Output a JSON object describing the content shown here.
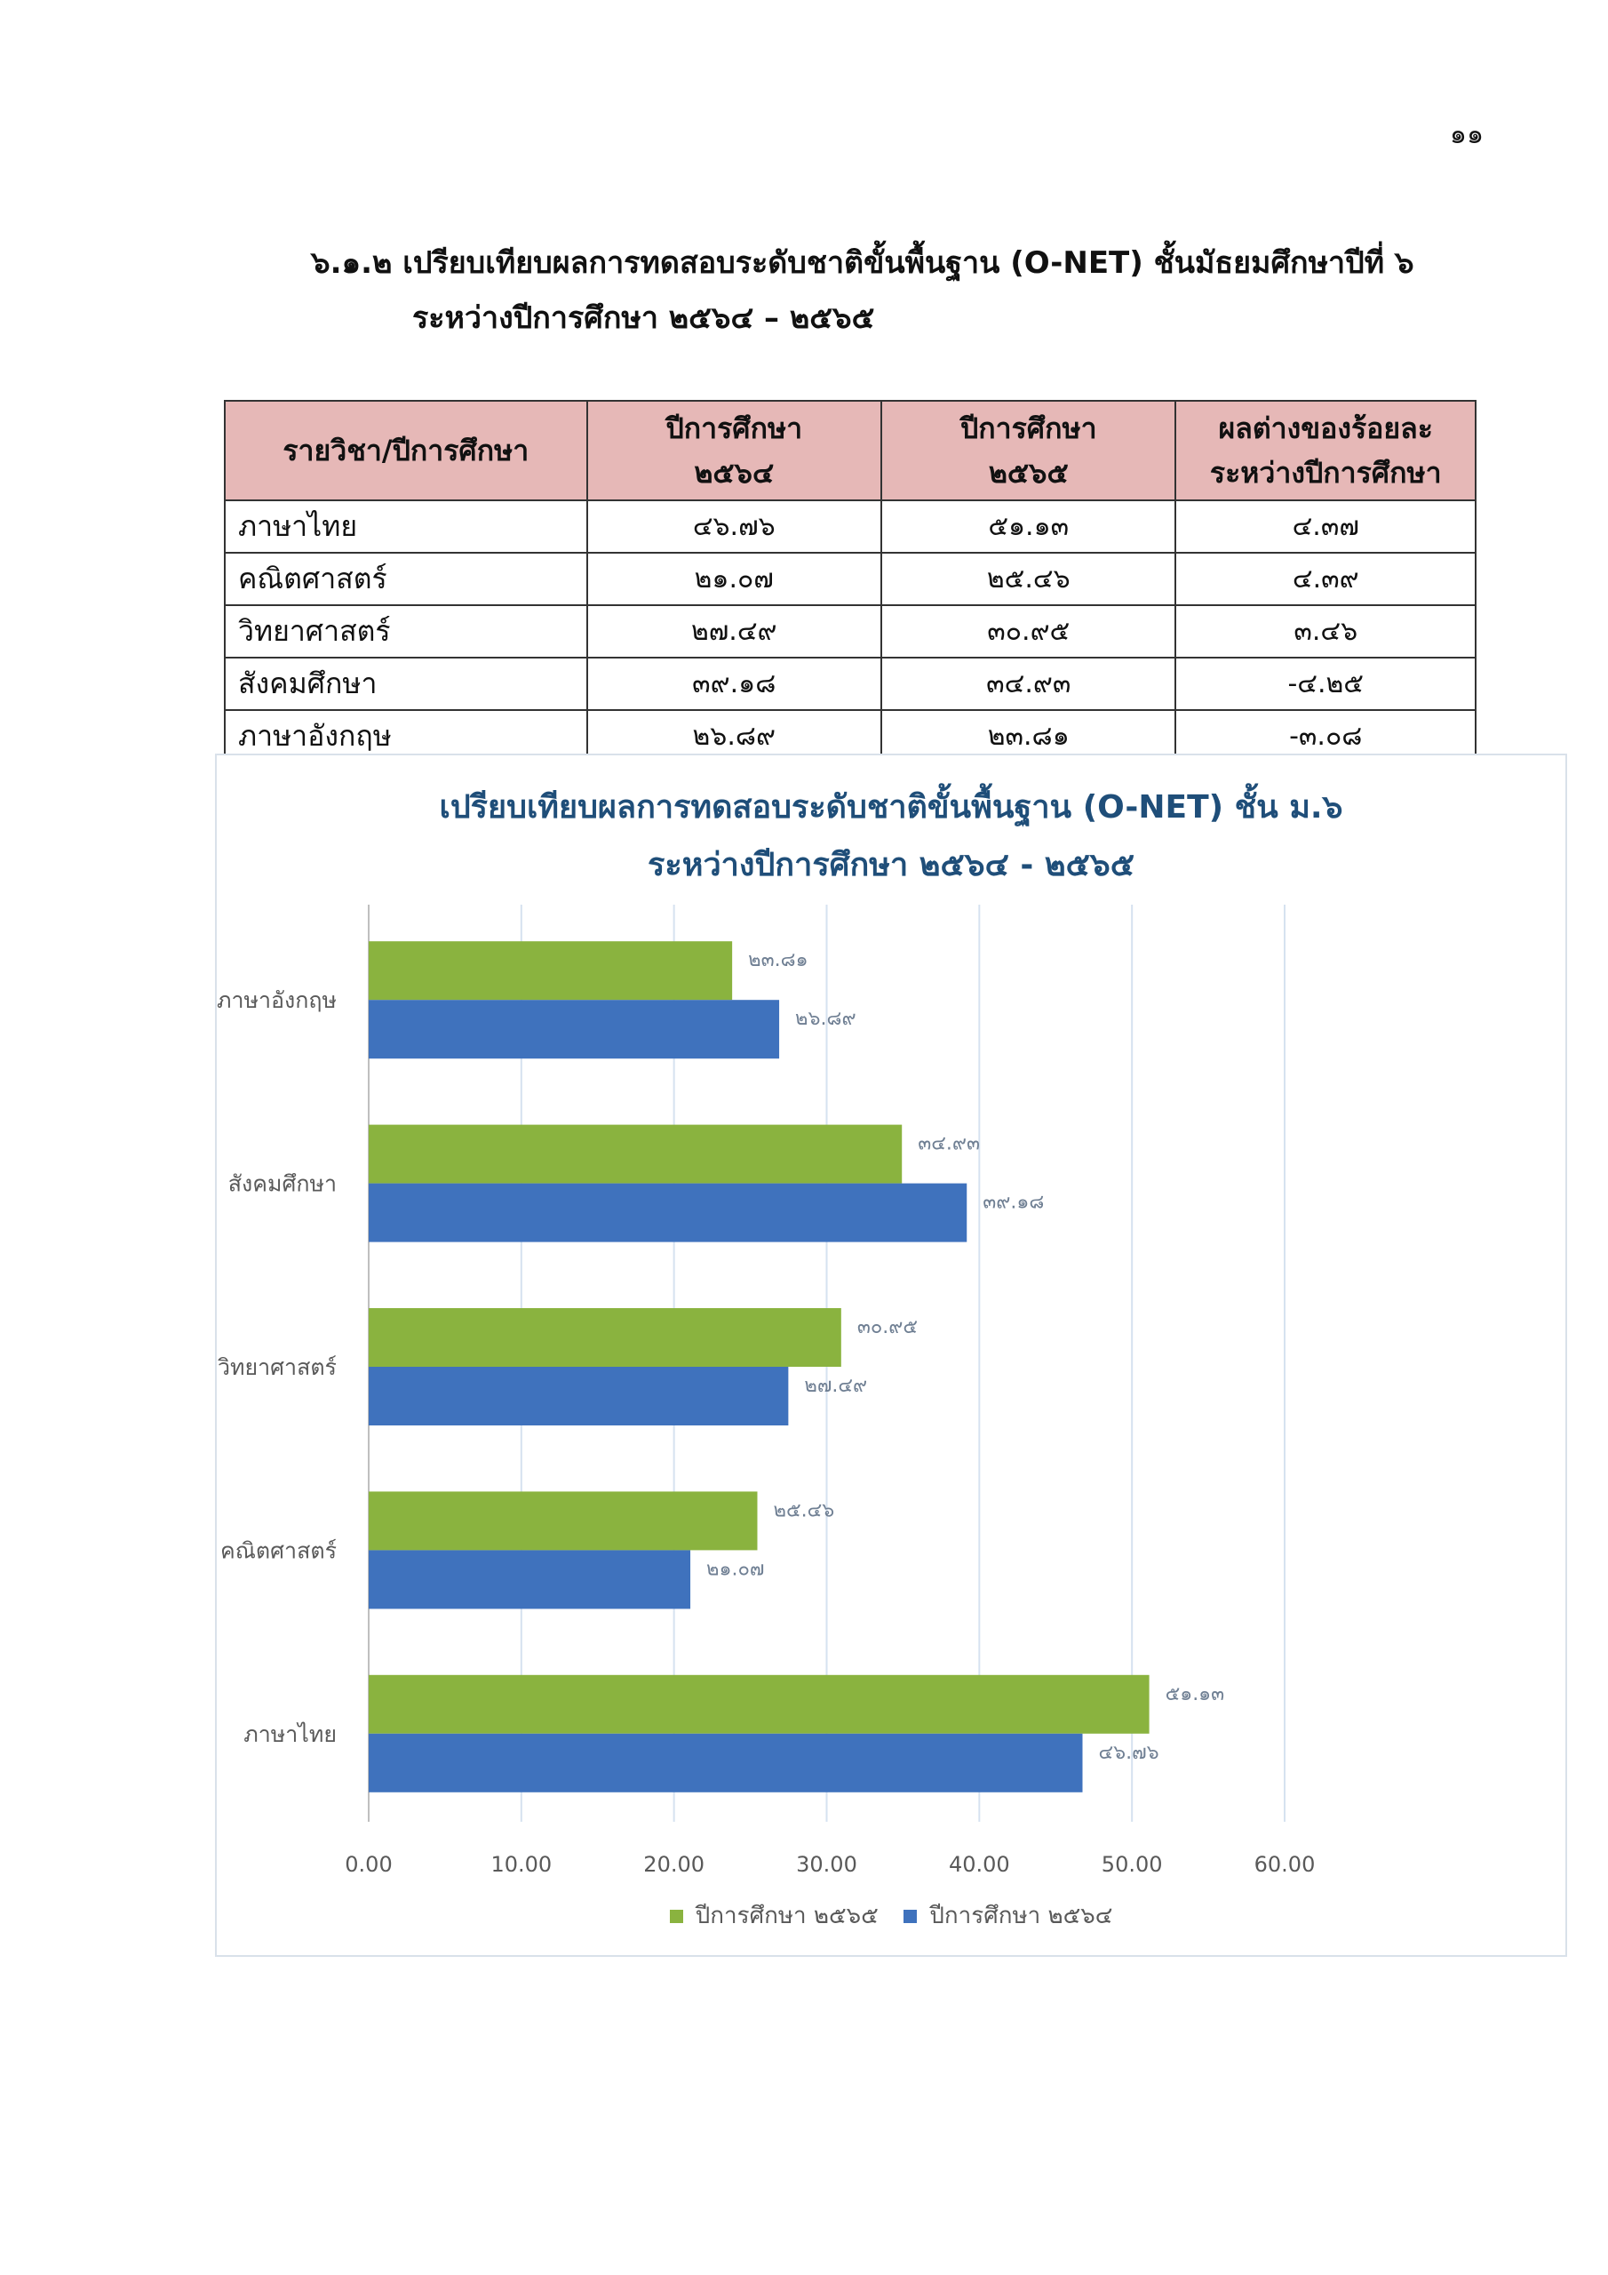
{
  "page_number": "๑๑",
  "heading": {
    "line1": "๖.๑.๒  เปรียบเทียบผลการทดสอบระดับชาติขั้นพื้นฐาน (O-NET) ชั้นมัธยมศึกษาปีที่ ๖",
    "line2": "ระหว่างปีการศึกษา ๒๕๖๔ – ๒๕๖๕"
  },
  "table": {
    "headers": [
      "รายวิชา/ปีการศึกษา",
      "ปีการศึกษา",
      "ปีการศึกษา",
      "ผลต่างของร้อยละ"
    ],
    "headers_line2": [
      "",
      "๒๕๖๔",
      "๒๕๖๕",
      "ระหว่างปีการศึกษา"
    ],
    "rows": [
      [
        "ภาษาไทย",
        "๔๖.๗๖",
        "๕๑.๑๓",
        "๔.๓๗"
      ],
      [
        "คณิตศาสตร์",
        "๒๑.๐๗",
        "๒๕.๔๖",
        "๔.๓๙"
      ],
      [
        "วิทยาศาสตร์",
        "๒๗.๔๙",
        "๓๐.๙๕",
        "๓.๔๖"
      ],
      [
        "สังคมศึกษา",
        "๓๙.๑๘",
        "๓๔.๙๓",
        "-๔.๒๕"
      ],
      [
        "ภาษาอังกฤษ",
        "๒๖.๘๙",
        "๒๓.๘๑",
        "-๓.๐๘"
      ]
    ]
  },
  "chart_data": {
    "type": "bar",
    "orientation": "horizontal",
    "title": "เปรียบเทียบผลการทดสอบระดับชาติขั้นพื้นฐาน (O-NET) ชั้น ม.๖",
    "subtitle": "ระหว่างปีการศึกษา ๒๕๖๔ - ๒๕๖๕",
    "categories": [
      "ภาษาอังกฤษ",
      "สังคมศึกษา",
      "วิทยาศาสตร์",
      "คณิตศาสตร์",
      "ภาษาไทย"
    ],
    "series": [
      {
        "name": "ปีการศึกษา ๒๕๖๕",
        "color": "#8ab33f",
        "values": [
          23.81,
          34.93,
          30.95,
          25.46,
          51.13
        ],
        "labels": [
          "๒๓.๘๑",
          "๓๔.๙๓",
          "๓๐.๙๕",
          "๒๕.๔๖",
          "๕๑.๑๓"
        ]
      },
      {
        "name": "ปีการศึกษา ๒๕๖๔",
        "color": "#3f72bd",
        "values": [
          26.89,
          39.18,
          27.49,
          21.07,
          46.76
        ],
        "labels": [
          "๒๖.๘๙",
          "๓๙.๑๘",
          "๒๗.๔๙",
          "๒๑.๐๗",
          "๔๖.๗๖"
        ]
      }
    ],
    "xlim": [
      0,
      60
    ],
    "xticks": [
      "0.00",
      "10.00",
      "20.00",
      "30.00",
      "40.00",
      "50.00",
      "60.00"
    ],
    "grid": true,
    "legend_position": "bottom",
    "title_color": "#1f4e79"
  }
}
